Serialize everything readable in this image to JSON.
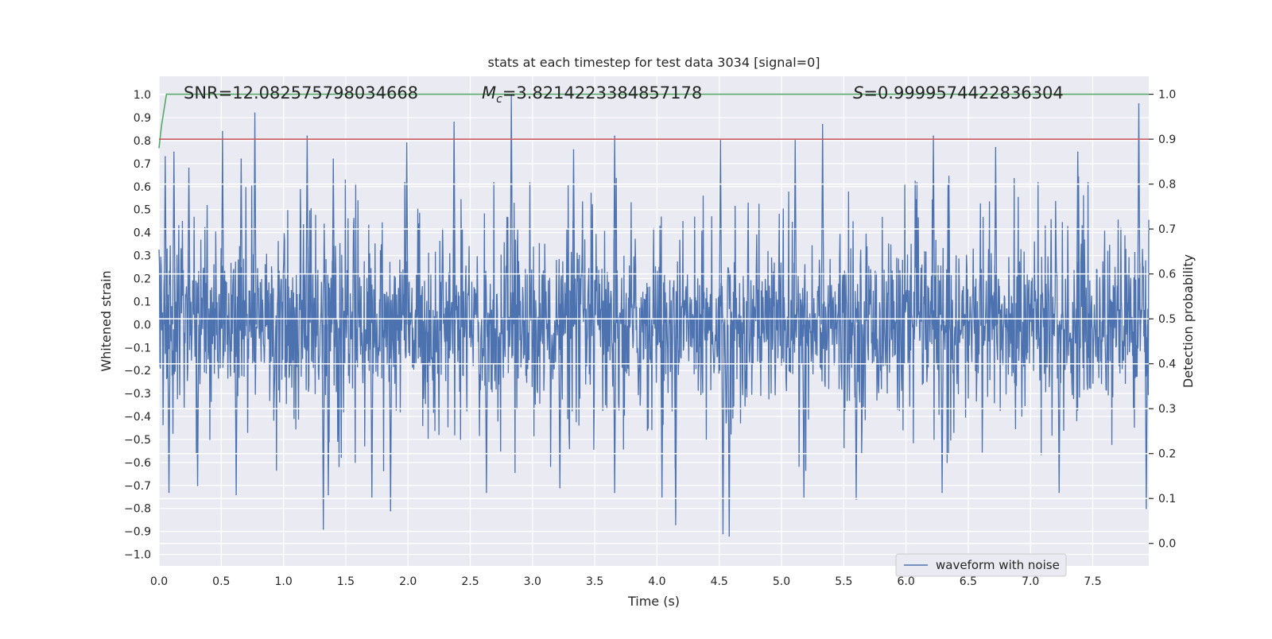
{
  "chart_data": {
    "type": "line",
    "title": "stats at each timestep for test data 3034 [signal=0]",
    "xlabel": "Time (s)",
    "ylabel": "Whitened strain",
    "y2label": "Detection probability",
    "xlim": [
      0.0,
      7.95
    ],
    "ylim": [
      -1.05,
      1.08
    ],
    "y2lim": [
      -0.05,
      1.04
    ],
    "x_ticks": [
      "0.0",
      "0.5",
      "1.0",
      "1.5",
      "2.0",
      "2.5",
      "3.0",
      "3.5",
      "4.0",
      "4.5",
      "5.0",
      "5.5",
      "6.0",
      "6.5",
      "7.0",
      "7.5"
    ],
    "y_ticks": [
      "1.0",
      "0.9",
      "0.8",
      "0.7",
      "0.6",
      "0.5",
      "0.4",
      "0.3",
      "0.2",
      "0.1",
      "0.0",
      "−0.1",
      "−0.2",
      "−0.3",
      "−0.4",
      "−0.5",
      "−0.6",
      "−0.7",
      "−0.8",
      "−0.9",
      "−1.0"
    ],
    "y2_ticks": [
      "1.0",
      "0.9",
      "0.8",
      "0.7",
      "0.6",
      "0.5",
      "0.4",
      "0.3",
      "0.2",
      "0.1",
      "0.0"
    ],
    "grid": true,
    "legend_placement": "lower-right",
    "annotations": {
      "snr": "SNR=12.082575798034668",
      "mc_symbol": "M",
      "mc_subscript": "c",
      "mc_value": "=3.8214223384857178",
      "s_symbol": "S",
      "s_value": "=0.9999574422836304"
    },
    "series": [
      {
        "name": "waveform with noise",
        "axis": "left",
        "color": "#4c72b0",
        "style": "dense noise trace",
        "x_range": [
          0.0,
          7.95
        ],
        "typical_band": [
          -0.35,
          0.4
        ],
        "peaks": [
          {
            "x": 0.05,
            "y": 0.73
          },
          {
            "x": 0.12,
            "y": 0.75
          },
          {
            "x": 0.24,
            "y": 0.68
          },
          {
            "x": 0.51,
            "y": 0.84
          },
          {
            "x": 0.66,
            "y": 0.72
          },
          {
            "x": 0.77,
            "y": 0.92
          },
          {
            "x": 1.19,
            "y": 0.82
          },
          {
            "x": 1.4,
            "y": 0.72
          },
          {
            "x": 1.99,
            "y": 0.79
          },
          {
            "x": 2.37,
            "y": 0.88
          },
          {
            "x": 2.83,
            "y": 1.0
          },
          {
            "x": 3.33,
            "y": 0.76
          },
          {
            "x": 3.66,
            "y": 0.82
          },
          {
            "x": 4.51,
            "y": 0.8
          },
          {
            "x": 5.11,
            "y": 0.8
          },
          {
            "x": 5.33,
            "y": 0.87
          },
          {
            "x": 6.22,
            "y": 0.82
          },
          {
            "x": 6.72,
            "y": 0.77
          },
          {
            "x": 7.38,
            "y": 0.75
          },
          {
            "x": 7.87,
            "y": 0.96
          }
        ],
        "troughs": [
          {
            "x": 0.08,
            "y": -0.73
          },
          {
            "x": 0.31,
            "y": -0.7
          },
          {
            "x": 0.62,
            "y": -0.74
          },
          {
            "x": 1.32,
            "y": -0.89
          },
          {
            "x": 1.36,
            "y": -0.74
          },
          {
            "x": 1.71,
            "y": -0.75
          },
          {
            "x": 1.86,
            "y": -0.81
          },
          {
            "x": 2.63,
            "y": -0.73
          },
          {
            "x": 3.22,
            "y": -0.71
          },
          {
            "x": 3.66,
            "y": -0.73
          },
          {
            "x": 4.04,
            "y": -0.75
          },
          {
            "x": 4.15,
            "y": -0.87
          },
          {
            "x": 4.53,
            "y": -0.91
          },
          {
            "x": 4.58,
            "y": -0.92
          },
          {
            "x": 5.18,
            "y": -0.75
          },
          {
            "x": 5.6,
            "y": -0.76
          },
          {
            "x": 6.29,
            "y": -0.73
          },
          {
            "x": 7.23,
            "y": -0.73
          },
          {
            "x": 7.93,
            "y": -0.8
          }
        ]
      },
      {
        "name": "",
        "axis": "right",
        "color": "#55a868",
        "x": [
          0.0,
          0.02,
          0.06,
          7.95
        ],
        "y": [
          0.88,
          0.93,
          1.0,
          1.0
        ]
      },
      {
        "name": "",
        "axis": "right",
        "color": "#c44e52",
        "x": [
          0.0,
          7.95
        ],
        "y": [
          0.9,
          0.9
        ]
      }
    ]
  }
}
